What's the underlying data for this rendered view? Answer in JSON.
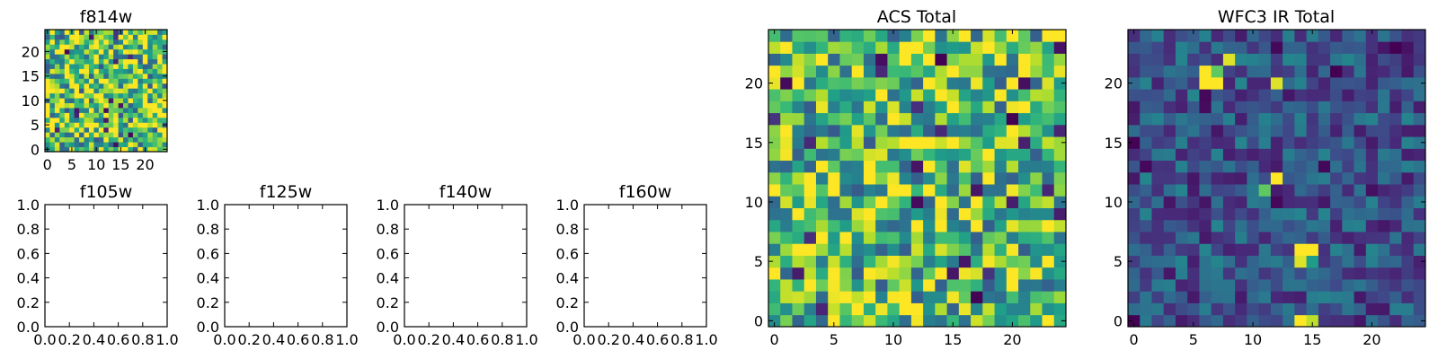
{
  "figure": {
    "background": "#ffffff"
  },
  "chart_data": [
    {
      "type": "heatmap",
      "title": "f814w",
      "grid_size": 25,
      "xlim": [
        -0.5,
        24.5
      ],
      "ylim": [
        -0.5,
        24.5
      ],
      "xticks": [
        0,
        5,
        10,
        15,
        20
      ],
      "yticks": [
        0,
        5,
        10,
        15,
        20
      ],
      "colormap": "viridis",
      "noise_seed": 11,
      "noise_base": 0.72,
      "noise_spread": 0.45,
      "peaks": []
    },
    {
      "type": "empty",
      "title": "f105w",
      "xlim": [
        0,
        1
      ],
      "ylim": [
        0,
        1
      ],
      "xticks": [
        "0.0",
        "0.2",
        "0.4",
        "0.6",
        "0.8",
        "1.0"
      ],
      "yticks": [
        "0.0",
        "0.2",
        "0.4",
        "0.6",
        "0.8",
        "1.0"
      ]
    },
    {
      "type": "empty",
      "title": "f125w",
      "xlim": [
        0,
        1
      ],
      "ylim": [
        0,
        1
      ],
      "xticks": [
        "0.0",
        "0.2",
        "0.4",
        "0.6",
        "0.8",
        "1.0"
      ],
      "yticks": [
        "0.0",
        "0.2",
        "0.4",
        "0.6",
        "0.8",
        "1.0"
      ]
    },
    {
      "type": "empty",
      "title": "f140w",
      "xlim": [
        0,
        1
      ],
      "ylim": [
        0,
        1
      ],
      "xticks": [
        "0.0",
        "0.2",
        "0.4",
        "0.6",
        "0.8",
        "1.0"
      ],
      "yticks": [
        "0.0",
        "0.2",
        "0.4",
        "0.6",
        "0.8",
        "1.0"
      ]
    },
    {
      "type": "empty",
      "title": "f160w",
      "xlim": [
        0,
        1
      ],
      "ylim": [
        0,
        1
      ],
      "xticks": [
        "0.0",
        "0.2",
        "0.4",
        "0.6",
        "0.8",
        "1.0"
      ],
      "yticks": [
        "0.0",
        "0.2",
        "0.4",
        "0.6",
        "0.8",
        "1.0"
      ]
    },
    {
      "type": "heatmap",
      "title": "ACS Total",
      "grid_size": 25,
      "xlim": [
        -0.5,
        24.5
      ],
      "ylim": [
        -0.5,
        24.5
      ],
      "xticks": [
        0,
        5,
        10,
        15,
        20
      ],
      "yticks": [
        0,
        5,
        10,
        15,
        20
      ],
      "colormap": "viridis",
      "noise_seed": 7,
      "noise_base": 0.7,
      "noise_spread": 0.42,
      "peaks": []
    },
    {
      "type": "heatmap",
      "title": "WFC3 IR Total",
      "grid_size": 25,
      "xlim": [
        -0.5,
        24.5
      ],
      "ylim": [
        -0.5,
        24.5
      ],
      "xticks": [
        0,
        5,
        10,
        15,
        20
      ],
      "yticks": [
        0,
        5,
        10,
        15,
        20
      ],
      "colormap": "viridis",
      "noise_seed": 3,
      "noise_base": 0.26,
      "noise_spread": 0.2,
      "peaks": [
        {
          "x": 6,
          "y": 21,
          "value": 1.0
        },
        {
          "x": 7,
          "y": 20,
          "value": 1.0
        },
        {
          "x": 6,
          "y": 20,
          "value": 1.0
        },
        {
          "x": 8,
          "y": 22,
          "value": 0.95
        },
        {
          "x": 7,
          "y": 21,
          "value": 0.75
        },
        {
          "x": 12,
          "y": 20,
          "value": 0.95
        },
        {
          "x": 12,
          "y": 12,
          "value": 1.0
        },
        {
          "x": 11,
          "y": 11,
          "value": 0.75
        },
        {
          "x": 14,
          "y": 6,
          "value": 1.0
        },
        {
          "x": 15,
          "y": 6,
          "value": 1.0
        },
        {
          "x": 14,
          "y": 5,
          "value": 0.95
        },
        {
          "x": 15,
          "y": 5,
          "value": 0.55
        },
        {
          "x": 14,
          "y": 0,
          "value": 1.0
        },
        {
          "x": 15,
          "y": 0,
          "value": 0.9
        },
        {
          "x": 0,
          "y": 0,
          "value": 0.0
        },
        {
          "x": 22,
          "y": 23,
          "value": 0.0
        },
        {
          "x": 23,
          "y": 23,
          "value": 0.05
        },
        {
          "x": 17,
          "y": 21,
          "value": 0.0
        }
      ]
    }
  ]
}
